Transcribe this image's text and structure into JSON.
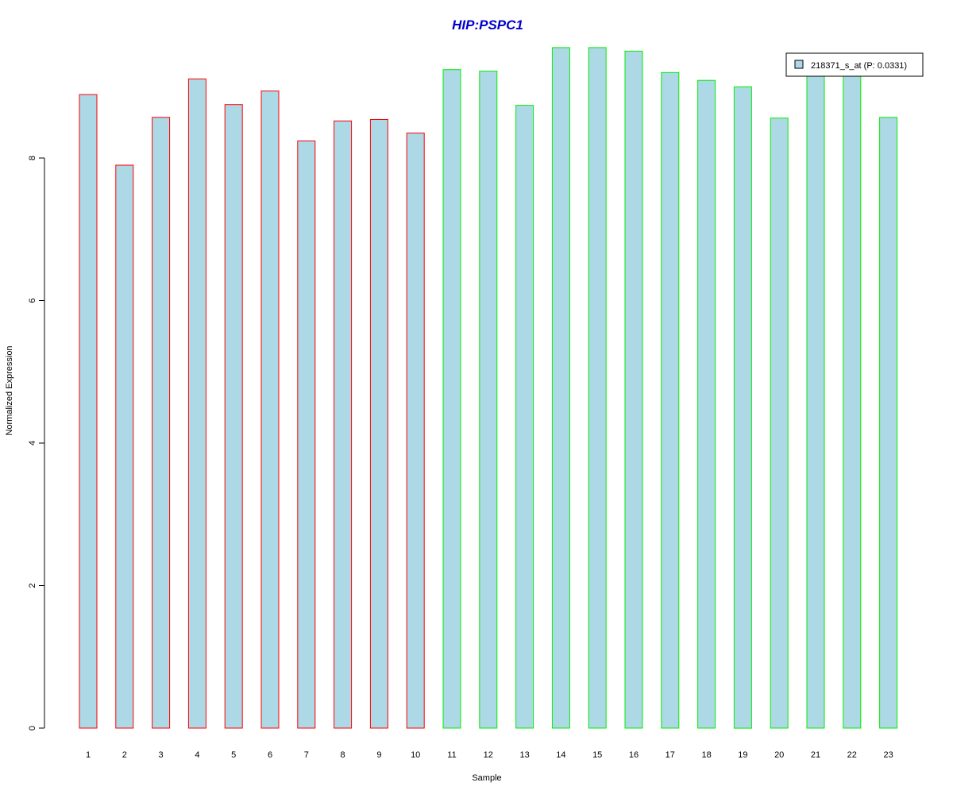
{
  "chart_data": {
    "type": "bar",
    "title": "HIP:PSPC1",
    "xlabel": "Sample",
    "ylabel": "Normalized Expression",
    "categories": [
      "1",
      "2",
      "3",
      "4",
      "5",
      "6",
      "7",
      "8",
      "9",
      "10",
      "11",
      "12",
      "13",
      "14",
      "15",
      "16",
      "17",
      "18",
      "19",
      "20",
      "21",
      "22",
      "23"
    ],
    "values": [
      8.89,
      7.9,
      8.57,
      9.11,
      8.75,
      8.94,
      8.24,
      8.52,
      8.54,
      8.35,
      9.24,
      9.22,
      8.74,
      9.55,
      9.55,
      9.5,
      9.2,
      9.09,
      9.0,
      8.56,
      9.17,
      9.21,
      8.57
    ],
    "groups": [
      "A",
      "A",
      "A",
      "A",
      "A",
      "A",
      "A",
      "A",
      "A",
      "A",
      "B",
      "B",
      "B",
      "B",
      "B",
      "B",
      "B",
      "B",
      "B",
      "B",
      "B",
      "B",
      "B"
    ],
    "group_colors": {
      "A": "#ff0000",
      "B": "#00ee00"
    },
    "bar_fill": "#add8e6",
    "title_color": "#0000cd",
    "y_ticks": [
      "0",
      "2",
      "4",
      "6",
      "8"
    ],
    "ylim": [
      0,
      9.6
    ],
    "legend": {
      "label": "218371_s_at (P: 0.0331)",
      "position": "top-right"
    },
    "grid": false
  }
}
